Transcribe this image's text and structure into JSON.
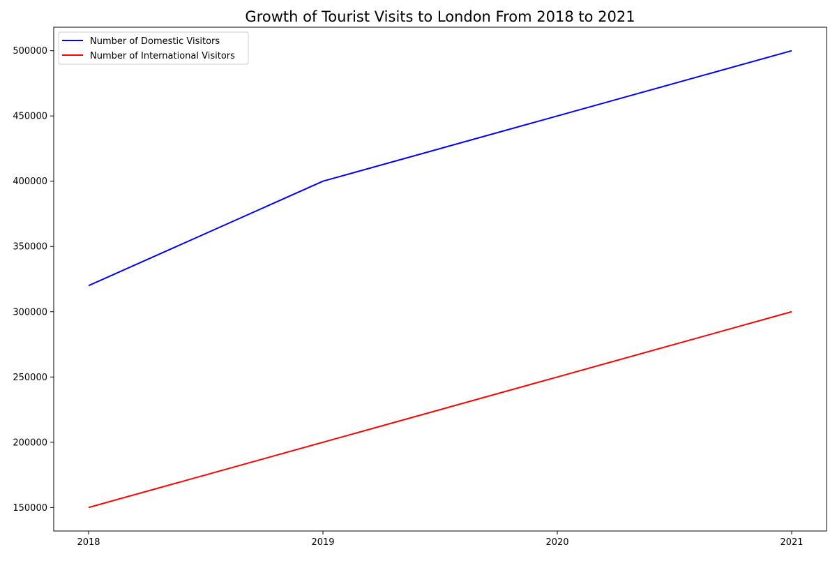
{
  "chart_data": {
    "type": "line",
    "title": "Growth of Tourist Visits to London From 2018 to 2021",
    "xlabel": "",
    "ylabel": "",
    "x": [
      "2018",
      "2019",
      "2020",
      "2021"
    ],
    "ylim": [
      132000,
      518000
    ],
    "yticks": [
      150000,
      200000,
      250000,
      300000,
      350000,
      400000,
      450000,
      500000
    ],
    "grid": false,
    "legend_position": "top-left",
    "series": [
      {
        "name": "Number of Domestic Visitors",
        "color": "#0000ff",
        "values": [
          320000,
          400000,
          450000,
          500000
        ]
      },
      {
        "name": "Number of International Visitors",
        "color": "#ff0000",
        "values": [
          150000,
          200000,
          250000,
          300000
        ]
      }
    ]
  }
}
